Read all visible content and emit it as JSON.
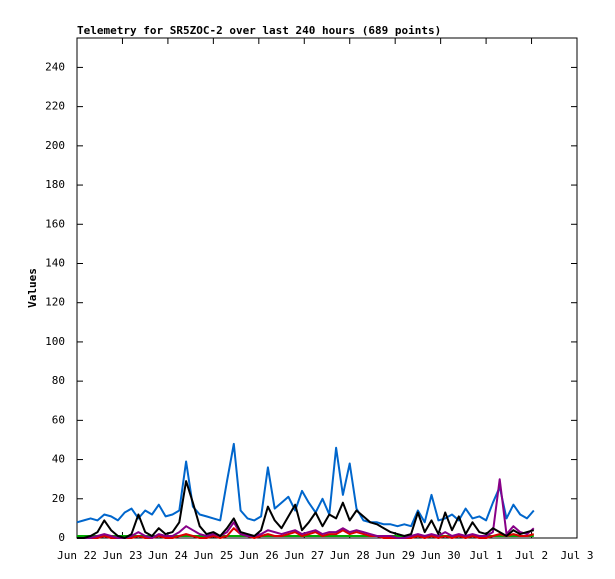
{
  "chart_data": {
    "type": "line",
    "title": "Telemetry for SR5ZOC-2 over last 240 hours (689 points)",
    "y_label": "Values",
    "xlim": [
      0,
      11
    ],
    "xticks": [
      {
        "value": 0,
        "label": "Jun 22"
      },
      {
        "value": 1,
        "label": "Jun 23"
      },
      {
        "value": 2,
        "label": "Jun 24"
      },
      {
        "value": 3,
        "label": "Jun 25"
      },
      {
        "value": 4,
        "label": "Jun 26"
      },
      {
        "value": 5,
        "label": "Jun 27"
      },
      {
        "value": 6,
        "label": "Jun 28"
      },
      {
        "value": 7,
        "label": "Jun 29"
      },
      {
        "value": 8,
        "label": "Jun 30"
      },
      {
        "value": 9,
        "label": "Jul 1"
      },
      {
        "value": 10,
        "label": "Jul 2"
      },
      {
        "value": 11,
        "label": "Jul 3"
      }
    ],
    "ylim": [
      0,
      255
    ],
    "yticks": [
      0,
      20,
      40,
      60,
      80,
      100,
      120,
      140,
      160,
      180,
      200,
      220,
      240
    ],
    "x": [
      0,
      0.15,
      0.3,
      0.45,
      0.6,
      0.75,
      0.9,
      1.05,
      1.2,
      1.35,
      1.5,
      1.65,
      1.8,
      1.95,
      2.1,
      2.25,
      2.4,
      2.55,
      2.7,
      2.85,
      3.0,
      3.15,
      3.3,
      3.45,
      3.6,
      3.75,
      3.9,
      4.05,
      4.2,
      4.35,
      4.5,
      4.65,
      4.8,
      4.95,
      5.1,
      5.25,
      5.4,
      5.55,
      5.7,
      5.85,
      6.0,
      6.15,
      6.3,
      6.45,
      6.6,
      6.75,
      6.9,
      7.05,
      7.2,
      7.35,
      7.5,
      7.65,
      7.8,
      7.95,
      8.1,
      8.25,
      8.4,
      8.55,
      8.7,
      8.85,
      9.0,
      9.15,
      9.3,
      9.45,
      9.6,
      9.75,
      9.9,
      10.05
    ],
    "series": [
      {
        "color": "#0066cc",
        "values": [
          8,
          9,
          10,
          9,
          12,
          11,
          9,
          13,
          15,
          10,
          14,
          12,
          17,
          11,
          12,
          14,
          39,
          16,
          12,
          11,
          10,
          9,
          29,
          48,
          14,
          10,
          9,
          11,
          36,
          15,
          18,
          21,
          14,
          24,
          18,
          13,
          20,
          12,
          46,
          22,
          38,
          15,
          9,
          8,
          8,
          7,
          7,
          6,
          7,
          6,
          14,
          8,
          22,
          9,
          10,
          12,
          9,
          15,
          10,
          11,
          9,
          18,
          26,
          10,
          17,
          12,
          10,
          14
        ]
      },
      {
        "color": "#00aa00",
        "values": [
          1,
          1,
          1,
          1,
          1,
          1,
          1,
          1,
          1,
          1,
          1,
          1,
          1,
          1,
          1,
          1,
          1,
          1,
          1,
          1,
          1,
          1,
          1,
          1,
          1,
          1,
          1,
          1,
          1,
          1,
          1,
          1,
          1,
          1,
          1,
          1,
          1,
          1,
          1,
          1,
          1,
          1,
          1,
          1,
          1,
          1,
          1,
          1,
          1,
          1,
          1,
          1,
          1,
          1,
          1,
          1,
          1,
          1,
          1,
          1,
          1,
          1,
          1,
          1,
          1,
          1,
          1,
          1
        ]
      },
      {
        "color": "#dd0000",
        "values": [
          0,
          0,
          0,
          0,
          1,
          0,
          0,
          0,
          0,
          1,
          0,
          0,
          1,
          0,
          0,
          1,
          2,
          1,
          0,
          0,
          1,
          0,
          1,
          5,
          2,
          1,
          0,
          1,
          2,
          1,
          1,
          2,
          3,
          1,
          2,
          3,
          1,
          2,
          2,
          4,
          2,
          3,
          2,
          1,
          1,
          0,
          0,
          0,
          0,
          0,
          1,
          0,
          1,
          0,
          1,
          0,
          1,
          0,
          1,
          0,
          0,
          1,
          2,
          1,
          2,
          1,
          1,
          2
        ]
      },
      {
        "color": "#880088",
        "values": [
          0,
          0,
          0,
          1,
          2,
          1,
          0,
          0,
          1,
          3,
          1,
          0,
          2,
          1,
          1,
          3,
          6,
          4,
          2,
          1,
          2,
          1,
          3,
          8,
          2,
          1,
          1,
          2,
          4,
          3,
          2,
          3,
          4,
          2,
          3,
          4,
          2,
          3,
          3,
          5,
          3,
          4,
          3,
          2,
          1,
          1,
          1,
          0,
          0,
          1,
          2,
          1,
          2,
          1,
          3,
          1,
          2,
          1,
          2,
          1,
          1,
          3,
          30,
          2,
          6,
          3,
          2,
          5
        ]
      },
      {
        "color": "#000000",
        "values": [
          0,
          0,
          1,
          3,
          9,
          4,
          1,
          0,
          2,
          12,
          3,
          1,
          5,
          2,
          3,
          8,
          29,
          18,
          6,
          2,
          3,
          1,
          5,
          10,
          3,
          2,
          1,
          4,
          16,
          9,
          5,
          11,
          17,
          4,
          8,
          13,
          6,
          12,
          10,
          18,
          9,
          14,
          11,
          8,
          7,
          5,
          3,
          2,
          1,
          2,
          13,
          3,
          9,
          2,
          13,
          4,
          11,
          2,
          8,
          3,
          2,
          5,
          3,
          1,
          4,
          2,
          3,
          4
        ]
      }
    ]
  }
}
